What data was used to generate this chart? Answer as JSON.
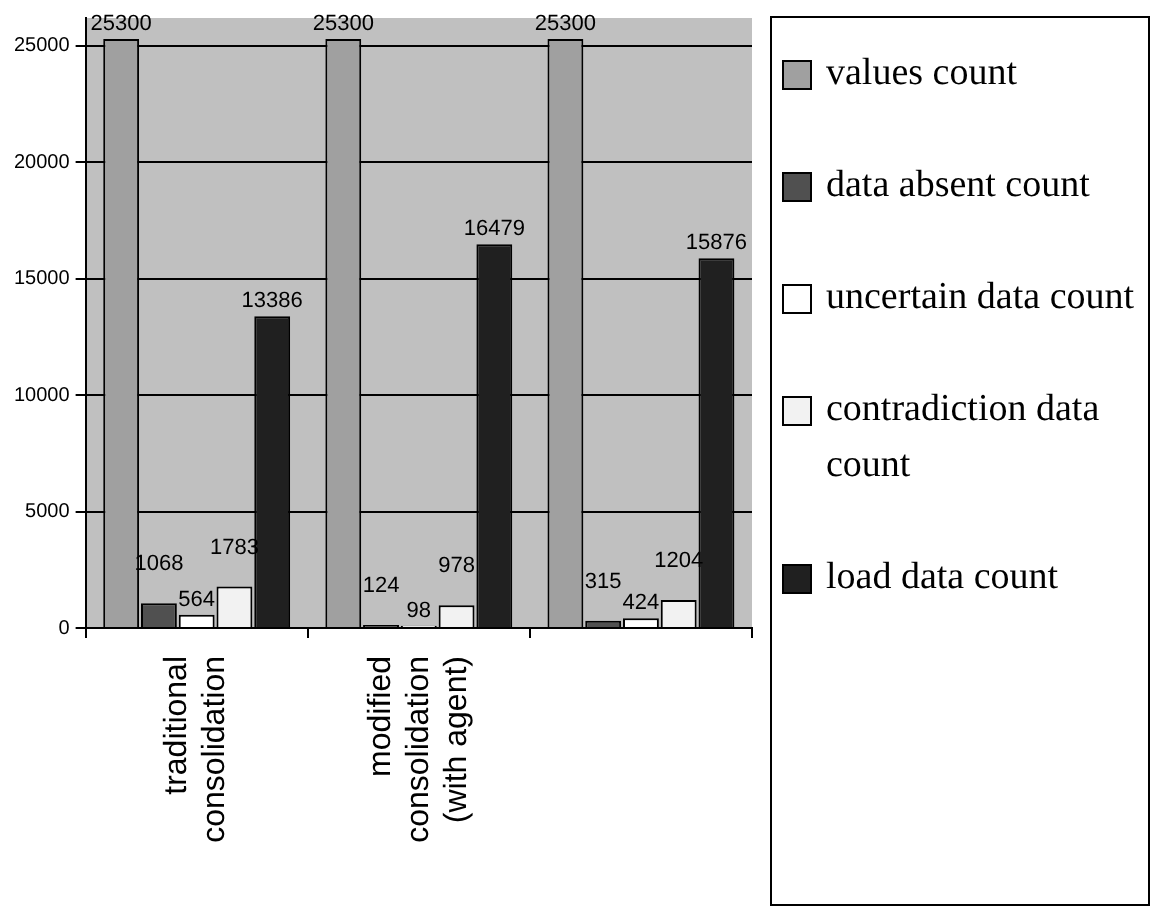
{
  "chart_data": {
    "type": "bar",
    "categories": [
      "traditional consolidation",
      "modified consolidation (with agent)",
      null
    ],
    "series": [
      {
        "name": "values count",
        "color": "#a0a0a0",
        "values": [
          25300,
          25300,
          25300
        ]
      },
      {
        "name": "data absent count",
        "color": "#505050",
        "values": [
          1068,
          124,
          315
        ]
      },
      {
        "name": "uncertain data count",
        "color": "#ffffff",
        "values": [
          564,
          98,
          424
        ]
      },
      {
        "name": "contradiction data count",
        "color": "#f2f2f2",
        "values": [
          1783,
          978,
          1204
        ]
      },
      {
        "name": "load data count",
        "color": "#202020",
        "values": [
          13386,
          16479,
          15876
        ]
      }
    ],
    "ylim": [
      0,
      26200
    ],
    "yticks": [
      0,
      5000,
      10000,
      15000,
      20000,
      25000
    ],
    "grid": "y",
    "legend": "right",
    "data_labels": true
  }
}
